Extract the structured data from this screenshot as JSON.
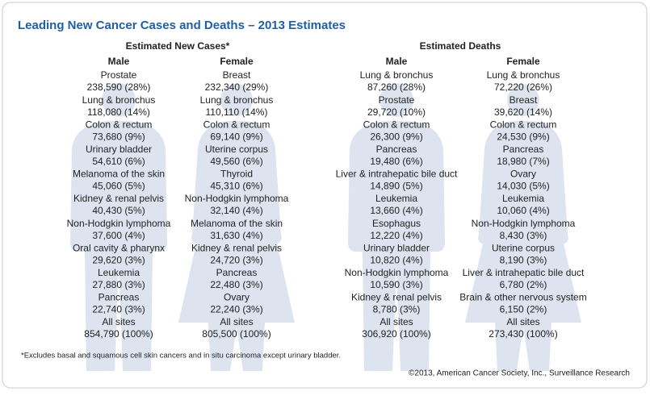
{
  "title": "Leading New Cancer Cases and Deaths – 2013 Estimates",
  "sections": [
    {
      "heading": "Estimated New Cases*",
      "columns": [
        {
          "heading": "Male",
          "entries": [
            {
              "site": "Prostate",
              "stat": "238,590 (28%)"
            },
            {
              "site": "Lung & bronchus",
              "stat": "118,080 (14%)"
            },
            {
              "site": "Colon & rectum",
              "stat": "73,680 (9%)"
            },
            {
              "site": "Urinary bladder",
              "stat": "54,610 (6%)"
            },
            {
              "site": "Melanoma of the skin",
              "stat": "45,060 (5%)"
            },
            {
              "site": "Kidney & renal pelvis",
              "stat": "40,430 (5%)"
            },
            {
              "site": "Non-Hodgkin lymphoma",
              "stat": "37,600 (4%)"
            },
            {
              "site": "Oral cavity & pharynx",
              "stat": "29,620 (3%)"
            },
            {
              "site": "Leukemia",
              "stat": "27,880 (3%)"
            },
            {
              "site": "Pancreas",
              "stat": "22,740 (3%)"
            },
            {
              "site": "All sites",
              "stat": "854,790 (100%)"
            }
          ]
        },
        {
          "heading": "Female",
          "entries": [
            {
              "site": "Breast",
              "stat": "232,340 (29%)"
            },
            {
              "site": "Lung & bronchus",
              "stat": "110,110 (14%)"
            },
            {
              "site": "Colon & rectum",
              "stat": "69,140 (9%)"
            },
            {
              "site": "Uterine corpus",
              "stat": "49,560 (6%)"
            },
            {
              "site": "Thyroid",
              "stat": "45,310 (6%)"
            },
            {
              "site": "Non-Hodgkin lymphoma",
              "stat": "32,140 (4%)"
            },
            {
              "site": "Melanoma of the skin",
              "stat": "31,630 (4%)"
            },
            {
              "site": "Kidney & renal pelvis",
              "stat": "24,720 (3%)"
            },
            {
              "site": "Pancreas",
              "stat": "22,480 (3%)"
            },
            {
              "site": "Ovary",
              "stat": "22,240 (3%)"
            },
            {
              "site": "All sites",
              "stat": "805,500 (100%)"
            }
          ]
        }
      ]
    },
    {
      "heading": "Estimated Deaths",
      "columns": [
        {
          "heading": "Male",
          "entries": [
            {
              "site": "Lung & bronchus",
              "stat": "87,260 (28%)"
            },
            {
              "site": "Prostate",
              "stat": "29,720 (10%)"
            },
            {
              "site": "Colon & rectum",
              "stat": "26,300 (9%)"
            },
            {
              "site": "Pancreas",
              "stat": "19,480 (6%)"
            },
            {
              "site": "Liver & intrahepatic bile duct",
              "stat": "14,890 (5%)"
            },
            {
              "site": "Leukemia",
              "stat": "13,660 (4%)"
            },
            {
              "site": "Esophagus",
              "stat": "12,220 (4%)"
            },
            {
              "site": "Urinary bladder",
              "stat": "10,820 (4%)"
            },
            {
              "site": "Non-Hodgkin lymphoma",
              "stat": "10,590 (3%)"
            },
            {
              "site": "Kidney & renal pelvis",
              "stat": "8,780 (3%)"
            },
            {
              "site": "All sites",
              "stat": "306,920 (100%)"
            }
          ]
        },
        {
          "heading": "Female",
          "entries": [
            {
              "site": "Lung & bronchus",
              "stat": "72,220 (26%)"
            },
            {
              "site": "Breast",
              "stat": "39,620 (14%)"
            },
            {
              "site": "Colon & rectum",
              "stat": "24,530 (9%)"
            },
            {
              "site": "Pancreas",
              "stat": "18,980 (7%)"
            },
            {
              "site": "Ovary",
              "stat": "14,030 (5%)"
            },
            {
              "site": "Leukemia",
              "stat": "10,060 (4%)"
            },
            {
              "site": "Non-Hodgkin lymphoma",
              "stat": "8,430 (3%)"
            },
            {
              "site": "Uterine corpus",
              "stat": "8,190 (3%)"
            },
            {
              "site": "Liver & intrahepatic bile duct",
              "stat": "6,780 (2%)"
            },
            {
              "site": "Brain & other nervous system",
              "stat": "6,150 (2%)"
            },
            {
              "site": "All sites",
              "stat": "273,430 (100%)"
            }
          ]
        }
      ]
    }
  ],
  "footnote": "*Excludes basal and squamous cell skin cancers and in situ carcinoma except urinary bladder.",
  "credit": "©2013, American Cancer Society, Inc., Surveillance Research"
}
